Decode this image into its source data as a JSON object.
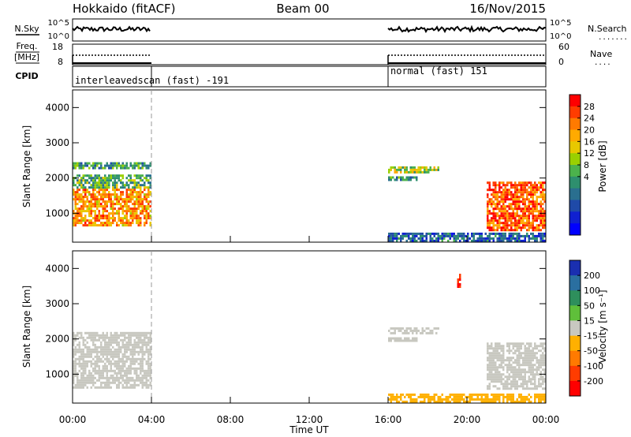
{
  "header": {
    "site": "Hokkaido (fitACF)",
    "beam": "Beam 00",
    "date": "16/Nov/2015"
  },
  "noise_panel": {
    "left_label": "N.Sky",
    "left_ticks": [
      "10^5",
      "10^0"
    ],
    "right_ticks": [
      "10^5",
      "10^0"
    ],
    "right_label": "N.Search",
    "right_dash": "......."
  },
  "freq_panel": {
    "left_label_1": "Freq.",
    "left_label_2": "[MHz]",
    "left_ticks": [
      "18",
      "8"
    ],
    "right_ticks": [
      "60",
      "0"
    ],
    "right_label": "Nave",
    "right_dash": "...."
  },
  "cpid_panel": {
    "label": "CPID",
    "programs": [
      {
        "name": "interleavedscan (fast) -191",
        "start_hour": 0,
        "end_hour": 4
      },
      {
        "name": "normal (fast) 151",
        "start_hour": 16,
        "end_hour": 24
      }
    ]
  },
  "x_axis": {
    "label": "Time UT",
    "ticks": [
      "00:00",
      "04:00",
      "08:00",
      "12:00",
      "16:00",
      "20:00",
      "00:00"
    ],
    "range_hours": [
      0,
      24
    ]
  },
  "power_panel": {
    "ylabel": "Slant Range [km]",
    "yticks": [
      "1000",
      "2000",
      "3000",
      "4000"
    ],
    "colorbar_label": "Power [dB]",
    "colorbar_ticks": [
      "28",
      "24",
      "20",
      "16",
      "12",
      "8",
      "4"
    ],
    "colorbar_colors": [
      "#ff0000",
      "#ff3c00",
      "#ff7a00",
      "#ffaa00",
      "#e8c800",
      "#9ad000",
      "#4cb24c",
      "#2e8f6e",
      "#2a6f8f",
      "#1f4aa8",
      "#1020d0",
      "#0000ff"
    ]
  },
  "velocity_panel": {
    "ylabel": "Slant Range [km]",
    "yticks": [
      "1000",
      "2000",
      "3000",
      "4000"
    ],
    "colorbar_label": "Velocity [m s⁻¹]",
    "colorbar_ticks": [
      "200",
      "100",
      "50",
      "15",
      "-15",
      "-50",
      "-100",
      "-200"
    ],
    "colorbar_colors": [
      "#1a2fb0",
      "#2a6fa0",
      "#2e8f5c",
      "#5fbf3a",
      "#c8c8c0",
      "#ffb000",
      "#ff7a00",
      "#ff3c00",
      "#ff0000"
    ]
  },
  "chart_data": [
    {
      "type": "line",
      "title": "N.Sky / N.Search",
      "x_unit": "hours UT",
      "x_range": [
        0,
        24
      ],
      "y_scale": "log",
      "y_range_ticks": [
        "10^0",
        "10^5"
      ],
      "segments_hours": [
        [
          0,
          4
        ],
        [
          16,
          24
        ]
      ],
      "series": [
        {
          "name": "N.Sky",
          "style": "solid"
        },
        {
          "name": "N.Search",
          "style": "dotted"
        }
      ]
    },
    {
      "type": "line",
      "title": "Freq. / Nave",
      "x_unit": "hours UT",
      "x_range": [
        0,
        24
      ],
      "segments": [
        {
          "hours": [
            0,
            4
          ],
          "freq_mhz_level": 8,
          "nave_level": 50
        },
        {
          "hours": [
            16,
            24
          ],
          "freq_mhz_level": 8,
          "nave_level": 50
        }
      ],
      "freq_range": [
        8,
        18
      ],
      "nave_range": [
        0,
        60
      ]
    },
    {
      "type": "heatmap",
      "title": "Power [dB]",
      "x_unit": "hours UT",
      "y_unit": "km",
      "x_range": [
        0,
        24
      ],
      "y_range": [
        180,
        4500
      ],
      "color_range": [
        0,
        32
      ],
      "regions": [
        {
          "hours": [
            0,
            4
          ],
          "range_km": [
            650,
            1700
          ],
          "power_db": 24
        },
        {
          "hours": [
            0,
            4
          ],
          "range_km": [
            1700,
            2100
          ],
          "power_db": 14
        },
        {
          "hours": [
            0,
            4
          ],
          "range_km": [
            2300,
            2450
          ],
          "power_db": 12
        },
        {
          "hours": [
            16,
            18.6
          ],
          "range_km": [
            2180,
            2330
          ],
          "power_db": 18
        },
        {
          "hours": [
            16,
            17.5
          ],
          "range_km": [
            1920,
            2050
          ],
          "power_db": 12
        },
        {
          "hours": [
            21.0,
            24
          ],
          "range_km": [
            500,
            1900
          ],
          "power_db": 27
        },
        {
          "hours": [
            16,
            24
          ],
          "range_km": [
            200,
            450
          ],
          "power_db": 8
        }
      ]
    },
    {
      "type": "heatmap",
      "title": "Velocity [m s⁻¹]",
      "x_unit": "hours UT",
      "y_unit": "km",
      "x_range": [
        0,
        24
      ],
      "y_range": [
        180,
        4500
      ],
      "color_range": [
        -200,
        200
      ],
      "regions": [
        {
          "hours": [
            0,
            4
          ],
          "range_km": [
            650,
            2200
          ],
          "velocity_ms": 0
        },
        {
          "hours": [
            16,
            18.6
          ],
          "range_km": [
            2180,
            2330
          ],
          "velocity_ms": 0
        },
        {
          "hours": [
            16,
            17.5
          ],
          "range_km": [
            1920,
            2050
          ],
          "velocity_ms": 0
        },
        {
          "hours": [
            19.5,
            19.7
          ],
          "range_km": [
            3500,
            3850
          ],
          "velocity_ms": -150
        },
        {
          "hours": [
            21.0,
            24
          ],
          "range_km": [
            600,
            1900
          ],
          "velocity_ms": 0
        },
        {
          "hours": [
            16,
            24
          ],
          "range_km": [
            200,
            450
          ],
          "velocity_ms": -40
        }
      ]
    }
  ]
}
